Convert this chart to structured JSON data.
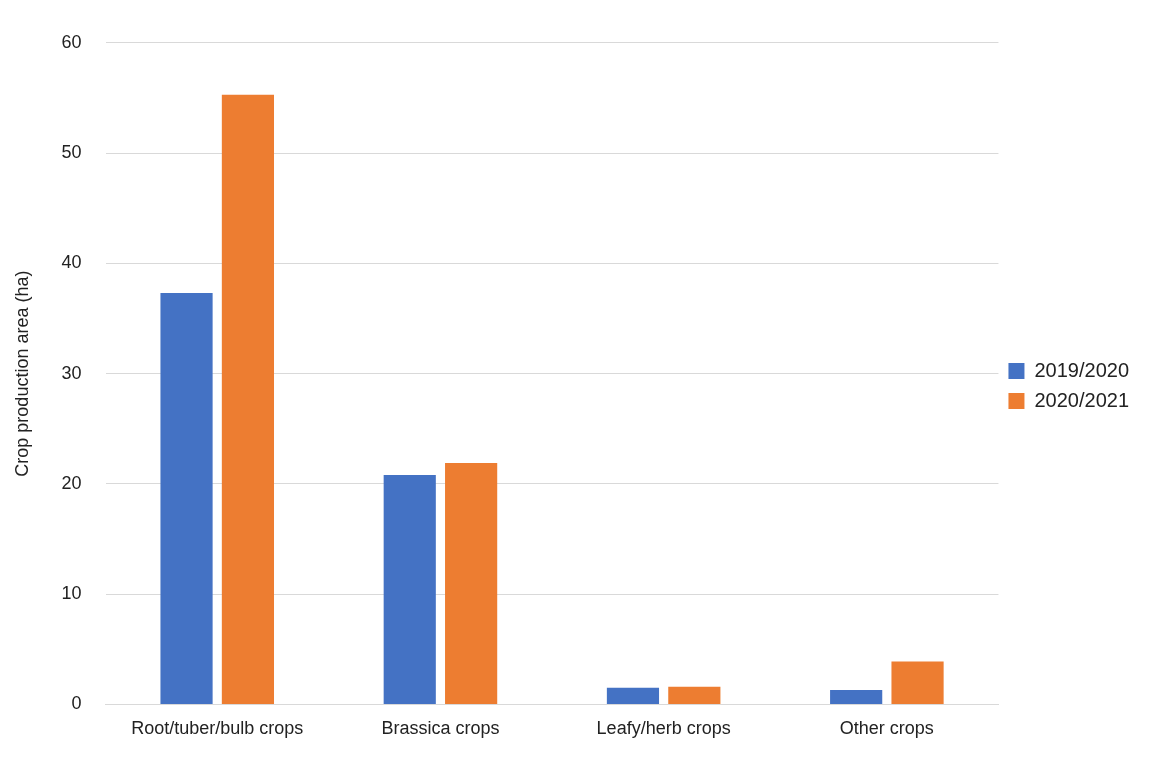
{
  "chart_data": {
    "type": "bar",
    "ylabel": "Crop production area (ha)",
    "categories": [
      "Root/tuber/bulb crops",
      "Brassica crops",
      "Leafy/herb crops",
      "Other crops"
    ],
    "series": [
      {
        "name": "2019/2020",
        "color": "#4472c4",
        "values": [
          37.3,
          20.8,
          1.5,
          1.3
        ]
      },
      {
        "name": "2020/2021",
        "color": "#ed7d31",
        "values": [
          55.3,
          21.9,
          1.6,
          3.9
        ]
      }
    ],
    "ylim": [
      0,
      60
    ],
    "yticks": [
      0,
      10,
      20,
      30,
      40,
      50,
      60
    ],
    "grid": "y",
    "legend": "right"
  }
}
